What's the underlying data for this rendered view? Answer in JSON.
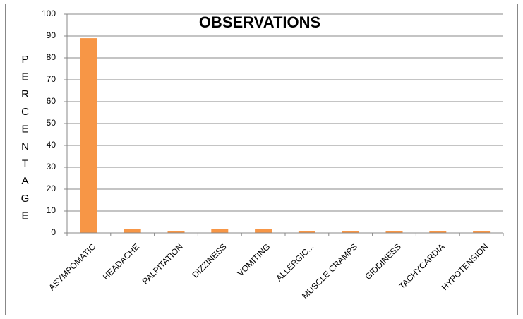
{
  "chart_data": {
    "type": "bar",
    "title": "OBSERVATIONS",
    "y_label": "PERCENTAGE",
    "categories": [
      "ASYMPOMATIC",
      "HEADACHE",
      "PALPITATION",
      "DIZZINESS",
      "VOMITING",
      "ALLERGIC...",
      "MUSCLE CRAMPS",
      "GIDDINESS",
      "TACHYCARDIA",
      "HYPOTENSION"
    ],
    "values": [
      89,
      1.7,
      0.8,
      1.7,
      1.7,
      0.8,
      0.8,
      0.8,
      0.8,
      0.8
    ],
    "color": "#f79646",
    "ylim": [
      0,
      100
    ],
    "yticks": [
      0,
      10,
      20,
      30,
      40,
      50,
      60,
      70,
      80,
      90,
      100
    ],
    "grid": true
  }
}
